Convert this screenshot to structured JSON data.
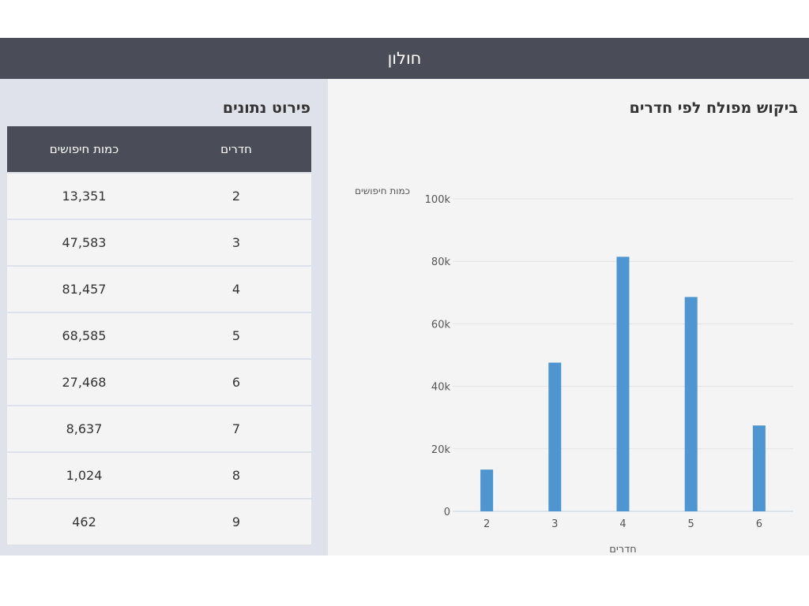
{
  "header": {
    "title": "חולון"
  },
  "table": {
    "title": "פירוט נתונים",
    "columns": [
      "חדרים",
      "כמות חיפושים"
    ],
    "rows": [
      {
        "rooms": "2",
        "count": "13,351"
      },
      {
        "rooms": "3",
        "count": "47,583"
      },
      {
        "rooms": "4",
        "count": "81,457"
      },
      {
        "rooms": "5",
        "count": "68,585"
      },
      {
        "rooms": "6",
        "count": "27,468"
      },
      {
        "rooms": "7",
        "count": "8,637"
      },
      {
        "rooms": "8",
        "count": "1,024"
      },
      {
        "rooms": "9",
        "count": "462"
      }
    ]
  },
  "chart_data": {
    "type": "bar",
    "title": "ביקוש מפולח לפי חדרים",
    "xlabel": "חדרים",
    "ylabel": "כמות חיפושים",
    "categories": [
      "2",
      "3",
      "4",
      "5",
      "6"
    ],
    "values": [
      13351,
      47583,
      81457,
      68585,
      27468
    ],
    "ylim": [
      0,
      100000
    ],
    "yticks": [
      0,
      20000,
      40000,
      60000,
      80000,
      100000
    ],
    "ytick_labels": [
      "0",
      "20k",
      "40k",
      "60k",
      "80k",
      "100k"
    ],
    "grid": true,
    "bar_color": "#4f95d0"
  }
}
